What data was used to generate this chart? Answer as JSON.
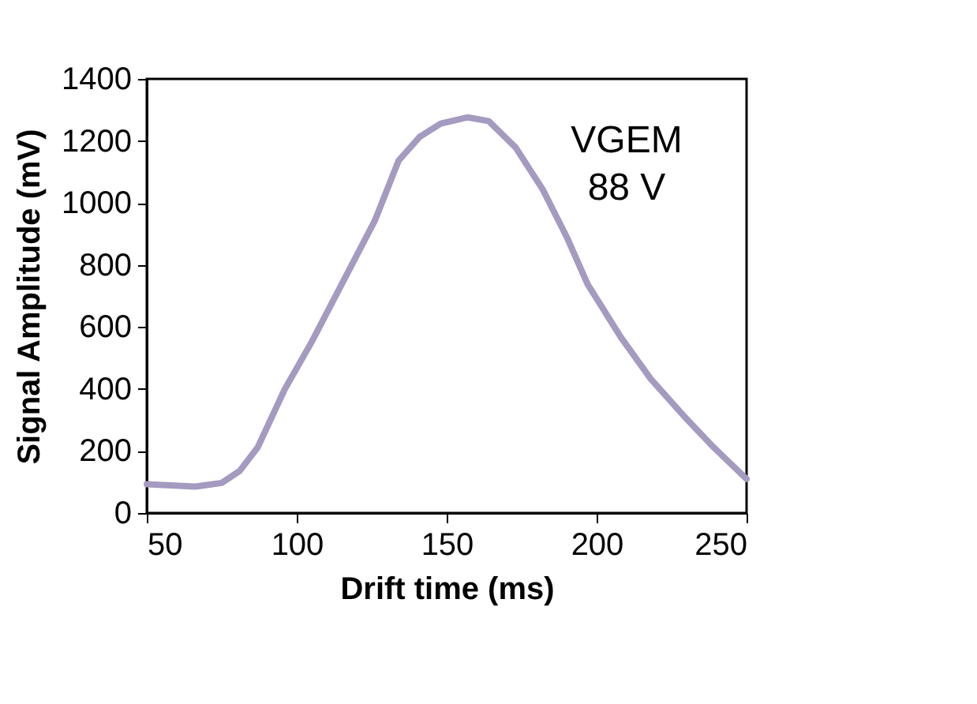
{
  "chart_data": {
    "type": "line",
    "xlabel": "Drift time (ms)",
    "ylabel": "Signal Amplitude (mV)",
    "x": [
      50,
      66,
      75,
      81,
      87,
      96,
      105,
      115,
      126,
      134,
      141,
      148,
      157,
      164,
      173,
      182,
      190,
      197,
      208,
      218,
      229,
      239,
      250
    ],
    "series": [
      {
        "color": "#a59ac0",
        "values": [
          93,
          85,
          97,
          136,
          212,
          399,
          552,
          738,
          942,
          1137,
          1213,
          1256,
          1276,
          1264,
          1179,
          1044,
          891,
          738,
          568,
          433,
          314,
          212,
          110
        ]
      }
    ],
    "xlim": [
      50,
      250
    ],
    "xticks": [
      50,
      100,
      150,
      200,
      250
    ],
    "ylim": [
      0,
      1400
    ],
    "yticks": [
      0,
      200,
      400,
      600,
      800,
      1000,
      1200,
      1400
    ],
    "grid": false,
    "marker": "none",
    "line_style": "solid",
    "annotations": [
      "VGEM\n88 V"
    ]
  }
}
